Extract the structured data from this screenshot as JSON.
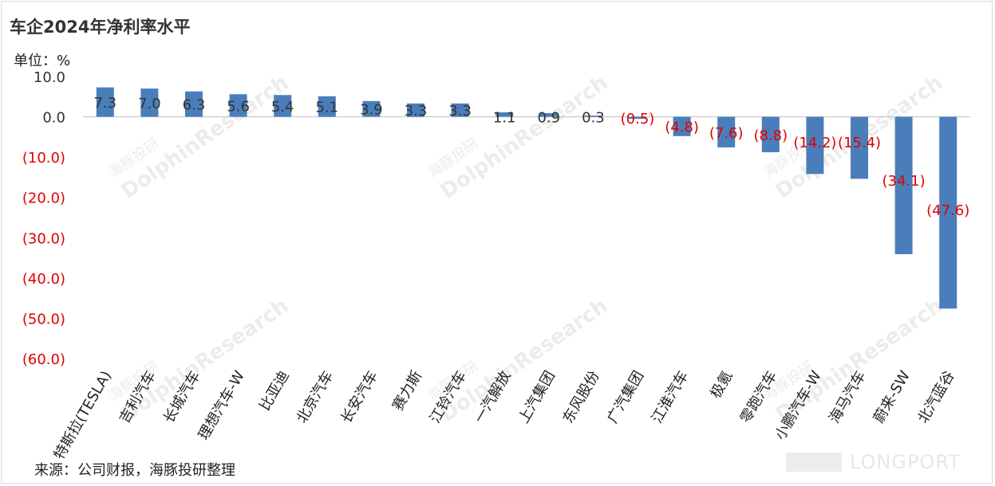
{
  "chart_data": {
    "type": "bar",
    "title": "车企2024年净利率水平",
    "unit_label": "单位：%",
    "categories": [
      "特斯拉(TESLA)",
      "吉利汽车",
      "长城汽车",
      "理想汽车-W",
      "比亚迪",
      "北京汽车",
      "长安汽车",
      "赛力斯",
      "江铃汽车",
      "一汽解放",
      "上汽集团",
      "东风股份",
      "广汽集团",
      "江淮汽车",
      "极氪",
      "零跑汽车",
      "小鹏汽车-W",
      "海马汽车",
      "蔚来-SW",
      "北汽蓝谷"
    ],
    "values": [
      7.3,
      7.0,
      6.3,
      5.6,
      5.4,
      5.1,
      3.9,
      3.3,
      3.3,
      1.1,
      0.9,
      0.3,
      -0.5,
      -4.8,
      -7.6,
      -8.8,
      -14.2,
      -15.4,
      -34.1,
      -47.6
    ],
    "data_labels": [
      "7.3",
      "7.0",
      "6.3",
      "5.6",
      "5.4",
      "5.1",
      "3.9",
      "3.3",
      "3.3",
      "1.1",
      "0.9",
      "0.3",
      "(0.5)",
      "(4.8)",
      "(7.6)",
      "(8.8)",
      "(14.2)",
      "(15.4)",
      "(34.1)",
      "(47.6)"
    ],
    "yticks": [
      10,
      0,
      -10,
      -20,
      -30,
      -40,
      -50,
      -60
    ],
    "ytick_labels": [
      "10.0",
      "0.0",
      "(10.0)",
      "(20.0)",
      "(30.0)",
      "(40.0)",
      "(50.0)",
      "(60.0)"
    ],
    "ylim": [
      -60,
      10
    ],
    "grid": false,
    "colors": {
      "bar": "#4a7ebb",
      "positive_text": "#333333",
      "negative_text": "#e00000"
    }
  },
  "source": "来源：公司财报，海豚投研整理",
  "watermark": {
    "brand_en": "DolphinResearch",
    "brand_cn": "海豚投研",
    "footer": "LONGPORT"
  }
}
